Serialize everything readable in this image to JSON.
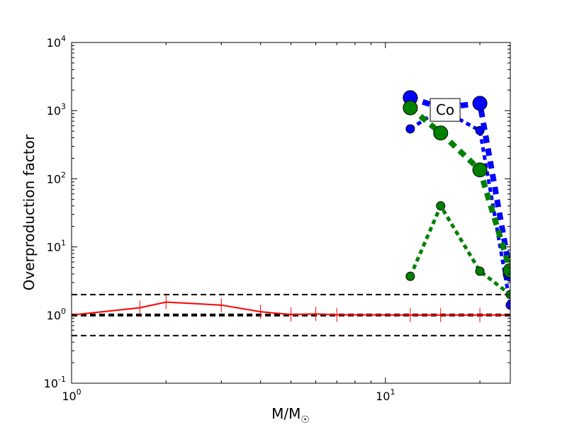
{
  "chart_data": {
    "type": "line",
    "xlabel": "M/M☉",
    "ylabel": "Overproduction factor",
    "xscale": "log",
    "yscale": "log",
    "xlim": [
      1,
      25
    ],
    "ylim": [
      0.1,
      10000
    ],
    "x_ticks": [
      {
        "value": 1,
        "base": "10",
        "exp": "0"
      },
      {
        "value": 10,
        "base": "10",
        "exp": "1"
      }
    ],
    "y_ticks": [
      {
        "value": 0.1,
        "base": "10",
        "exp": "-1"
      },
      {
        "value": 1,
        "base": "10",
        "exp": "0"
      },
      {
        "value": 10,
        "base": "10",
        "exp": "1"
      },
      {
        "value": 100,
        "base": "10",
        "exp": "2"
      },
      {
        "value": 1000,
        "base": "10",
        "exp": "3"
      },
      {
        "value": 10000,
        "base": "10",
        "exp": "4"
      }
    ],
    "annotation": "Co",
    "annotation_x": 15.5,
    "annotation_y": 1050,
    "reference_lines": [
      {
        "y": 2,
        "color": "#000000",
        "width": 2
      },
      {
        "y": 1,
        "color": "#000000",
        "width": 4
      },
      {
        "y": 0.5,
        "color": "#000000",
        "width": 2
      }
    ],
    "series": [
      {
        "color": "#ff0000",
        "style": "solid",
        "width": 2,
        "marker": "tick",
        "x": [
          1,
          1.65,
          2,
          3,
          4,
          5,
          6,
          7,
          12,
          15,
          20,
          25
        ],
        "y": [
          1.0,
          1.28,
          1.55,
          1.4,
          1.12,
          1.02,
          1.04,
          1.01,
          1.0,
          1.0,
          1.0,
          1.0
        ]
      },
      {
        "color": "#0000ff",
        "style": "dotted",
        "width": 5,
        "marker": "circle",
        "marker_size": 6,
        "x": [
          12,
          15,
          20,
          25
        ],
        "y": [
          540,
          1050,
          510,
          1.4
        ]
      },
      {
        "color": "#0000ff",
        "style": "dotted",
        "width": 8,
        "marker": "circle",
        "marker_size": 10,
        "x": [
          12,
          15,
          20,
          25
        ],
        "y": [
          1550,
          1100,
          1280,
          4.0
        ]
      },
      {
        "color": "#008000",
        "style": "dotted",
        "width": 5,
        "marker": "circle",
        "marker_size": 6,
        "x": [
          12,
          15,
          20,
          25
        ],
        "y": [
          3.7,
          40,
          4.4,
          2.0
        ]
      },
      {
        "color": "#008000",
        "style": "dotted",
        "width": 8,
        "marker": "circle",
        "marker_size": 10,
        "x": [
          12,
          15,
          20,
          25
        ],
        "y": [
          1100,
          470,
          135,
          4.5
        ]
      }
    ]
  }
}
